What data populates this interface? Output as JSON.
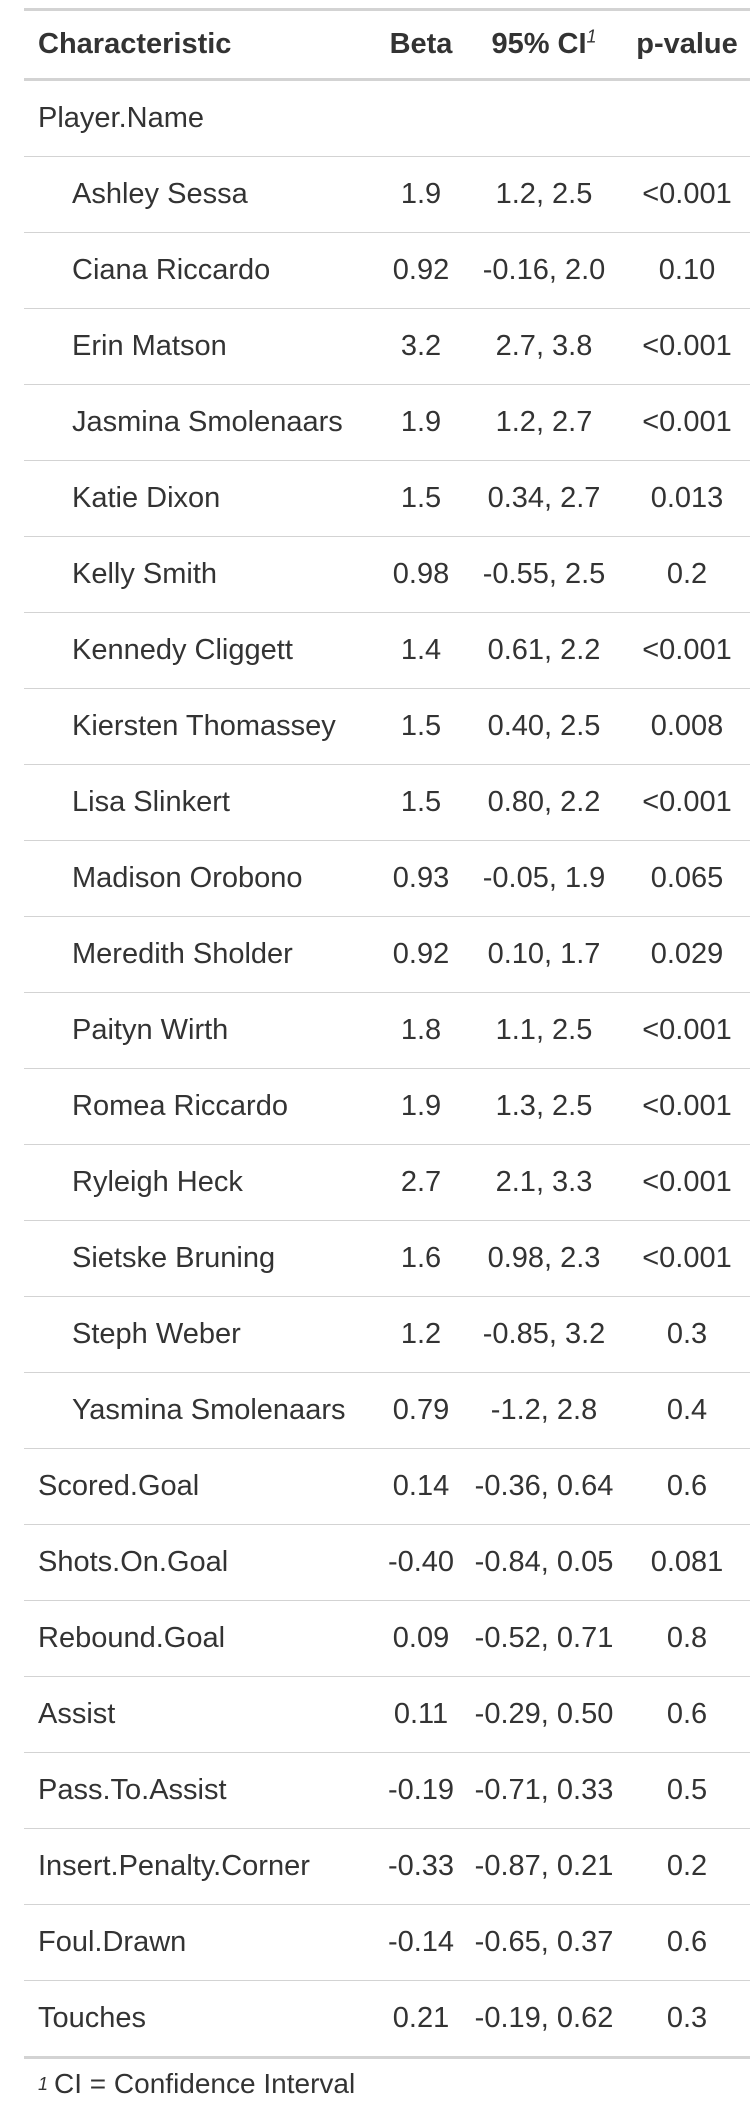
{
  "header": {
    "characteristic": "Characteristic",
    "beta": "Beta",
    "ci": "95% CI",
    "ci_footnote_mark": "1",
    "p_value": "p-value"
  },
  "rows": [
    {
      "label": "Player.Name",
      "beta": "",
      "ci": "",
      "p": "",
      "indent": false
    },
    {
      "label": "Ashley Sessa",
      "beta": "1.9",
      "ci": "1.2, 2.5",
      "p": "<0.001",
      "indent": true
    },
    {
      "label": "Ciana Riccardo",
      "beta": "0.92",
      "ci": "-0.16, 2.0",
      "p": "0.10",
      "indent": true
    },
    {
      "label": "Erin Matson",
      "beta": "3.2",
      "ci": "2.7, 3.8",
      "p": "<0.001",
      "indent": true
    },
    {
      "label": "Jasmina Smolenaars",
      "beta": "1.9",
      "ci": "1.2, 2.7",
      "p": "<0.001",
      "indent": true
    },
    {
      "label": "Katie Dixon",
      "beta": "1.5",
      "ci": "0.34, 2.7",
      "p": "0.013",
      "indent": true
    },
    {
      "label": "Kelly Smith",
      "beta": "0.98",
      "ci": "-0.55, 2.5",
      "p": "0.2",
      "indent": true
    },
    {
      "label": "Kennedy Cliggett",
      "beta": "1.4",
      "ci": "0.61, 2.2",
      "p": "<0.001",
      "indent": true
    },
    {
      "label": "Kiersten Thomassey",
      "beta": "1.5",
      "ci": "0.40, 2.5",
      "p": "0.008",
      "indent": true
    },
    {
      "label": "Lisa Slinkert",
      "beta": "1.5",
      "ci": "0.80, 2.2",
      "p": "<0.001",
      "indent": true
    },
    {
      "label": "Madison Orobono",
      "beta": "0.93",
      "ci": "-0.05, 1.9",
      "p": "0.065",
      "indent": true
    },
    {
      "label": "Meredith Sholder",
      "beta": "0.92",
      "ci": "0.10, 1.7",
      "p": "0.029",
      "indent": true
    },
    {
      "label": "Paityn Wirth",
      "beta": "1.8",
      "ci": "1.1, 2.5",
      "p": "<0.001",
      "indent": true
    },
    {
      "label": "Romea Riccardo",
      "beta": "1.9",
      "ci": "1.3, 2.5",
      "p": "<0.001",
      "indent": true
    },
    {
      "label": "Ryleigh Heck",
      "beta": "2.7",
      "ci": "2.1, 3.3",
      "p": "<0.001",
      "indent": true
    },
    {
      "label": "Sietske Bruning",
      "beta": "1.6",
      "ci": "0.98, 2.3",
      "p": "<0.001",
      "indent": true
    },
    {
      "label": "Steph Weber",
      "beta": "1.2",
      "ci": "-0.85, 3.2",
      "p": "0.3",
      "indent": true
    },
    {
      "label": "Yasmina Smolenaars",
      "beta": "0.79",
      "ci": "-1.2, 2.8",
      "p": "0.4",
      "indent": true
    },
    {
      "label": "Scored.Goal",
      "beta": "0.14",
      "ci": "-0.36, 0.64",
      "p": "0.6",
      "indent": false
    },
    {
      "label": "Shots.On.Goal",
      "beta": "-0.40",
      "ci": "-0.84, 0.05",
      "p": "0.081",
      "indent": false
    },
    {
      "label": "Rebound.Goal",
      "beta": "0.09",
      "ci": "-0.52, 0.71",
      "p": "0.8",
      "indent": false
    },
    {
      "label": "Assist",
      "beta": "0.11",
      "ci": "-0.29, 0.50",
      "p": "0.6",
      "indent": false
    },
    {
      "label": "Pass.To.Assist",
      "beta": "-0.19",
      "ci": "-0.71, 0.33",
      "p": "0.5",
      "indent": false
    },
    {
      "label": "Insert.Penalty.Corner",
      "beta": "-0.33",
      "ci": "-0.87, 0.21",
      "p": "0.2",
      "indent": false
    },
    {
      "label": "Foul.Drawn",
      "beta": "-0.14",
      "ci": "-0.65, 0.37",
      "p": "0.6",
      "indent": false
    },
    {
      "label": "Touches",
      "beta": "0.21",
      "ci": "-0.19, 0.62",
      "p": "0.3",
      "indent": false
    }
  ],
  "footnote": {
    "mark": "1",
    "text": "CI = Confidence Interval"
  }
}
